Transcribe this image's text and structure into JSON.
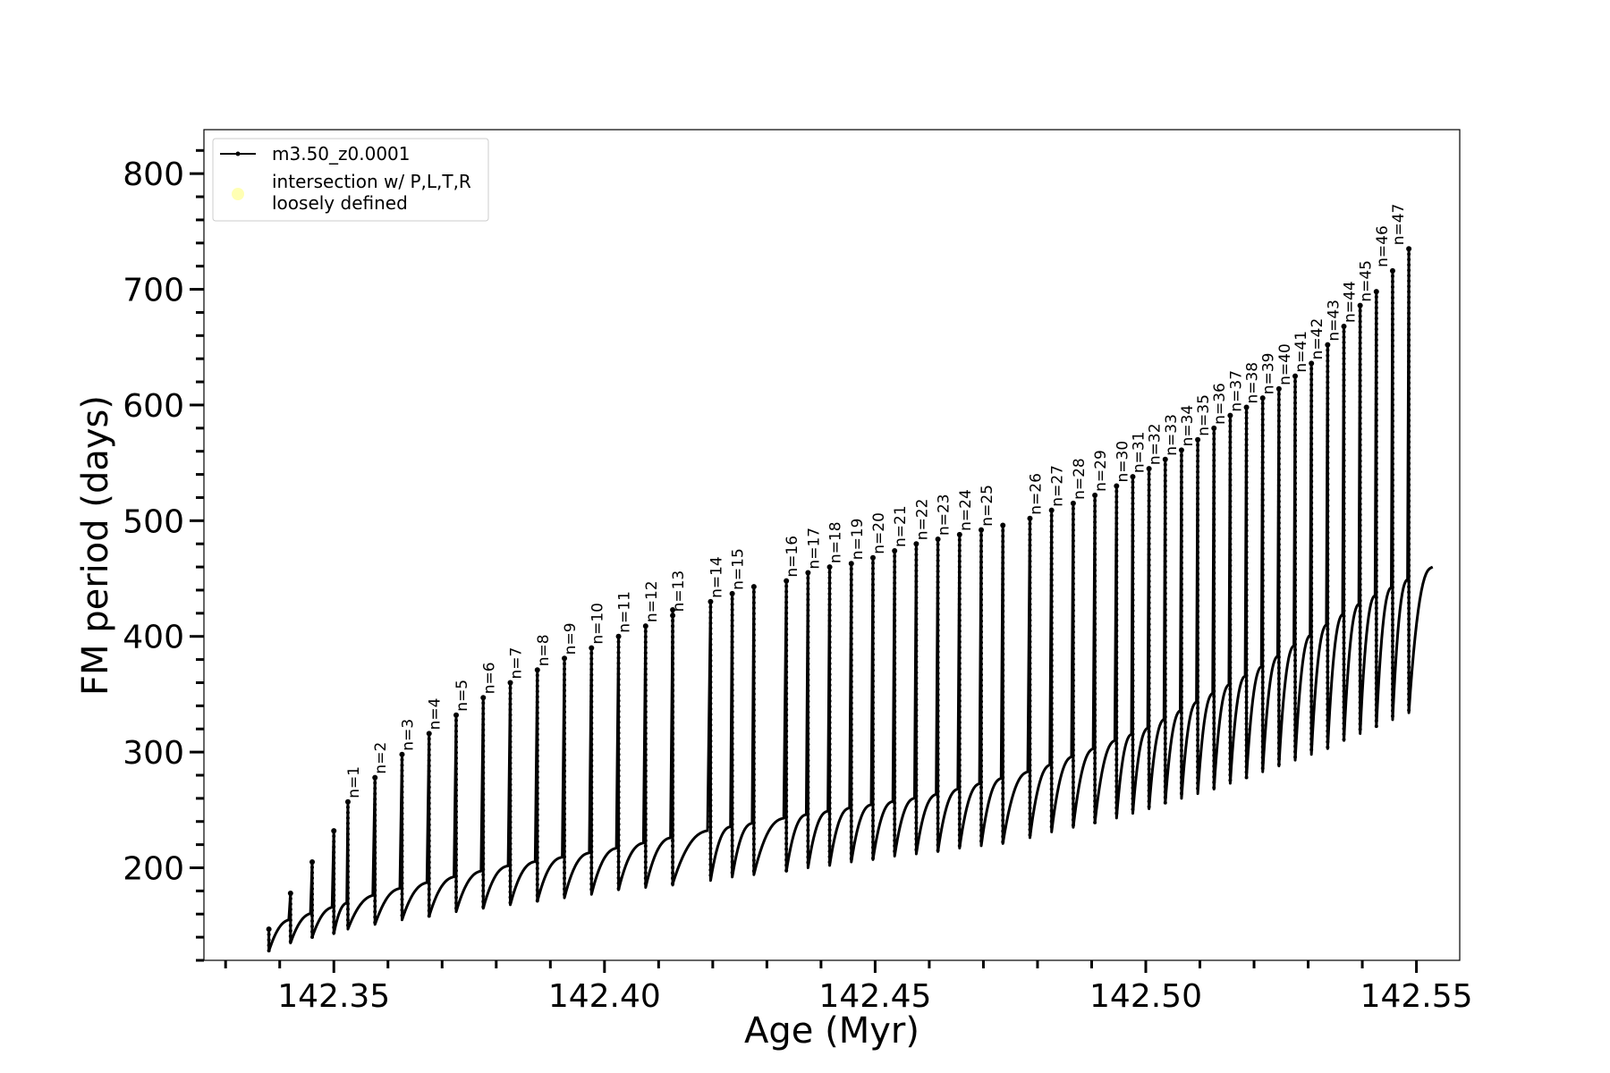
{
  "chart_data": {
    "type": "line",
    "xlabel": "Age (Myr)",
    "ylabel": "FM period (days)",
    "xlim": [
      142.326,
      142.558
    ],
    "ylim": [
      120,
      838
    ],
    "xticks": [
      142.35,
      142.4,
      142.45,
      142.5,
      142.55
    ],
    "xtick_labels": [
      "142.35",
      "142.40",
      "142.45",
      "142.50",
      "142.55"
    ],
    "yticks": [
      200,
      300,
      400,
      500,
      600,
      700,
      800
    ],
    "ytick_labels": [
      "200",
      "300",
      "400",
      "500",
      "600",
      "700",
      "800"
    ],
    "grid": false,
    "legend": {
      "placement": "top-left",
      "entries": [
        {
          "label": "m3.50_z0.0001",
          "marker": "line-with-dots",
          "color": "#000000"
        },
        {
          "label_lines": [
            "intersection w/ P,L,T,R",
            "loosely defined"
          ],
          "marker": "circle",
          "color": "#ffffb3"
        }
      ]
    },
    "series": [
      {
        "name": "m3.50_z0.0001",
        "color": "#000000",
        "baseline": {
          "x": [
            142.338,
            142.36,
            142.38,
            142.4,
            142.42,
            142.44,
            142.46,
            142.48,
            142.5,
            142.52,
            142.54,
            142.553
          ],
          "y": [
            150,
            180,
            200,
            215,
            233,
            248,
            262,
            285,
            320,
            370,
            430,
            460
          ]
        },
        "pulses": {
          "x": [
            142.338,
            142.342,
            142.346,
            142.35,
            142.3526,
            142.3576,
            142.3626,
            142.3676,
            142.3726,
            142.3776,
            142.3826,
            142.3876,
            142.3926,
            142.3976,
            142.4026,
            142.4076,
            142.4126,
            142.4126,
            142.4196,
            142.4236,
            142.4276,
            142.4336,
            142.4376,
            142.4416,
            142.4456,
            142.4496,
            142.4536,
            142.4576,
            142.4616,
            142.4656,
            142.4696,
            142.4736,
            142.4786,
            142.4826,
            142.4866,
            142.4906,
            142.4946,
            142.4976,
            142.5006,
            142.5036,
            142.5066,
            142.5096,
            142.5126,
            142.5156,
            142.5186,
            142.5216,
            142.5246,
            142.5276,
            142.5306,
            142.5336,
            142.5366,
            142.5396,
            142.5426,
            142.5456,
            142.5486
          ],
          "peak": [
            147,
            178,
            205,
            232,
            257,
            278,
            298,
            316,
            332,
            347,
            360,
            371,
            381,
            390,
            400,
            409,
            418,
            423,
            430,
            437,
            443,
            448,
            455,
            460,
            463,
            468,
            474,
            480,
            484,
            488,
            492,
            496,
            502,
            509,
            515,
            522,
            530,
            538,
            545,
            553,
            561,
            570,
            580,
            591,
            598,
            606,
            614,
            625,
            636,
            652,
            668,
            686,
            698,
            716,
            735
          ],
          "trough": [
            128,
            135,
            140,
            143,
            147,
            151,
            155,
            158,
            162,
            165,
            168,
            171,
            174,
            177,
            181,
            183,
            185,
            186,
            189,
            192,
            194,
            197,
            200,
            202,
            205,
            207,
            210,
            212,
            214,
            217,
            219,
            221,
            226,
            231,
            235,
            239,
            243,
            247,
            251,
            256,
            260,
            264,
            268,
            273,
            278,
            283,
            288,
            293,
            298,
            303,
            310,
            316,
            322,
            328,
            334
          ]
        }
      }
    ],
    "annotations": [
      "n=1",
      "n=2",
      "n=3",
      "n=4",
      "n=5",
      "n=6",
      "n=7",
      "n=8",
      "n=9",
      "n=10",
      "n=11",
      "n=12",
      "n=13",
      "n=14",
      "n=15",
      "n=16",
      "n=17",
      "n=18",
      "n=19",
      "n=20",
      "n=21",
      "n=22",
      "n=23",
      "n=24",
      "n=25",
      "n=26",
      "n=27",
      "n=28",
      "n=29",
      "n=30",
      "n=31",
      "n=32",
      "n=33",
      "n=34",
      "n=35",
      "n=36",
      "n=37",
      "n=38",
      "n=39",
      "n=40",
      "n=41",
      "n=42",
      "n=43",
      "n=44",
      "n=45",
      "n=46",
      "n=47"
    ],
    "annotation_points": {
      "x": [
        142.3526,
        142.3576,
        142.3626,
        142.3676,
        142.3726,
        142.3776,
        142.3826,
        142.3876,
        142.3926,
        142.3976,
        142.4026,
        142.4076,
        142.4126,
        142.4196,
        142.4236,
        142.4336,
        142.4376,
        142.4416,
        142.4456,
        142.4496,
        142.4536,
        142.4576,
        142.4616,
        142.4656,
        142.4696,
        142.4786,
        142.4826,
        142.4866,
        142.4906,
        142.4946,
        142.4976,
        142.5006,
        142.5036,
        142.5066,
        142.5096,
        142.5126,
        142.5156,
        142.5186,
        142.5216,
        142.5246,
        142.5276,
        142.5306,
        142.5336,
        142.5366,
        142.5396,
        142.5426,
        142.5456
      ],
      "y": [
        257,
        278,
        298,
        316,
        332,
        347,
        360,
        371,
        381,
        390,
        400,
        409,
        418,
        430,
        437,
        448,
        455,
        460,
        463,
        468,
        474,
        480,
        484,
        488,
        492,
        502,
        509,
        515,
        522,
        530,
        538,
        545,
        553,
        561,
        570,
        580,
        591,
        598,
        606,
        614,
        625,
        636,
        652,
        668,
        686,
        716,
        735
      ]
    }
  }
}
